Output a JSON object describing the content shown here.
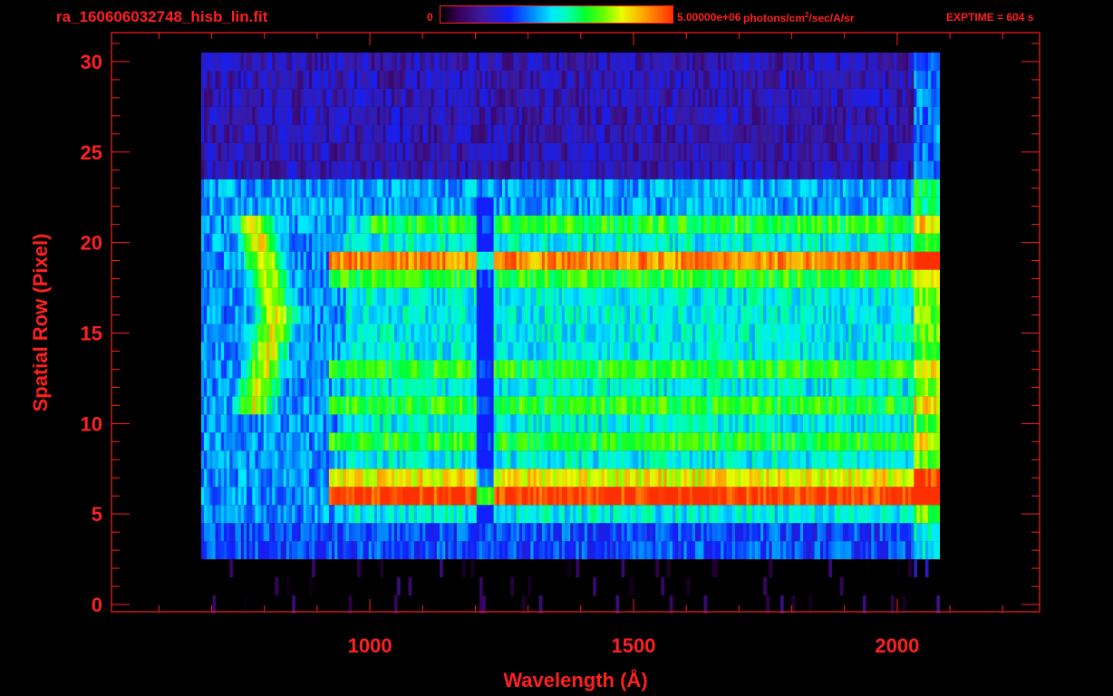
{
  "header": {
    "filename": "ra_160606032748_hisb_lin.fit",
    "colorbar_min": "0",
    "colorbar_max": "5.00000e+06",
    "colorbar_unit_pre": "photons/cm",
    "colorbar_unit_sup": "2",
    "colorbar_unit_post": "/sec/A/sr",
    "exptime": "EXPTIME = 604 s"
  },
  "colors": {
    "axis": "#ff2020",
    "background": "#000000"
  },
  "chart_data": {
    "type": "heatmap",
    "title": "ra_160606032748_hisb_lin.fit",
    "xlabel": "Wavelength (Å)",
    "ylabel": "Spatial Row (Pixel)",
    "xlim": [
      510,
      2270
    ],
    "ylim": [
      -0.4,
      31.6
    ],
    "x_ticks": [
      1000,
      1500,
      2000
    ],
    "y_ticks": [
      0,
      5,
      10,
      15,
      20,
      25,
      30
    ],
    "data_extent_wavelength": [
      680,
      2080
    ],
    "colorbar_range": [
      0,
      5000000
    ],
    "colorscale": "rainbow",
    "bright_rows": [
      {
        "row": 6,
        "level": "red",
        "start_wavelength": 920,
        "end_wavelength": 2060
      },
      {
        "row": 7,
        "level": "yellow",
        "start_wavelength": 920,
        "end_wavelength": 2060
      },
      {
        "row": 19,
        "level": "orange",
        "start_wavelength": 920,
        "end_wavelength": 2060
      },
      {
        "row": 21,
        "level": "green",
        "start_wavelength": 1000,
        "end_wavelength": 2060
      },
      {
        "row": 18,
        "level": "green",
        "start_wavelength": 920,
        "end_wavelength": 2060
      },
      {
        "row": 13,
        "level": "green",
        "start_wavelength": 920,
        "end_wavelength": 2060
      },
      {
        "row": 11,
        "level": "green",
        "start_wavelength": 920,
        "end_wavelength": 2060
      },
      {
        "row": 9,
        "level": "green",
        "start_wavelength": 920,
        "end_wavelength": 2060
      }
    ],
    "absorption_feature_wavelength": 1216
  }
}
